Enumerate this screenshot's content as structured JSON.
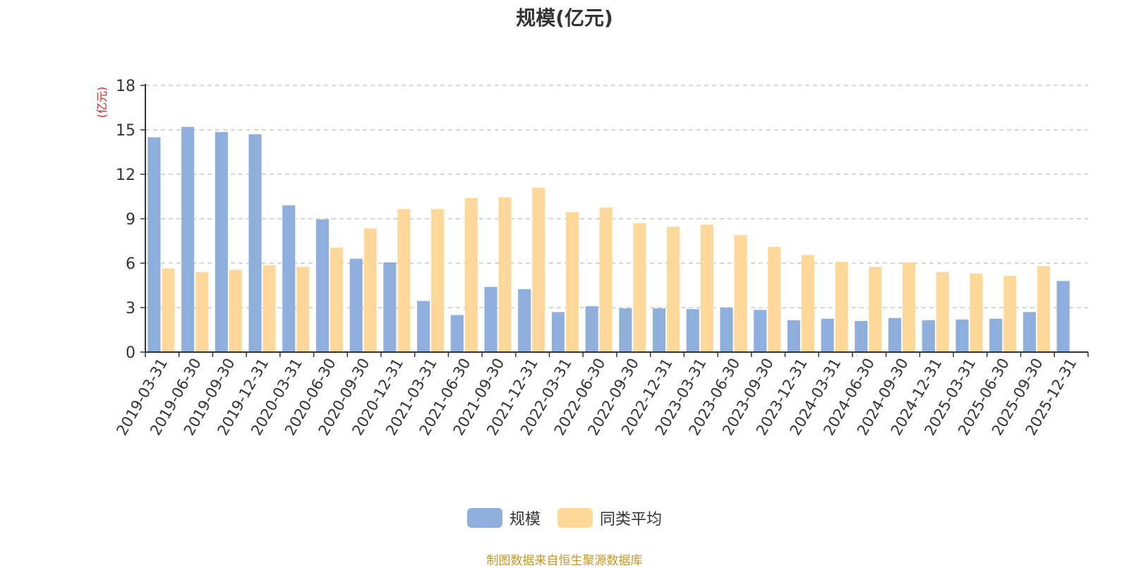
{
  "chart_data": {
    "type": "bar",
    "title": "规模(亿元)",
    "ylabel": "(亿元)",
    "xlabel": "",
    "ylim": [
      0,
      18
    ],
    "yticks": [
      0,
      3,
      6,
      9,
      12,
      15,
      18
    ],
    "grid": true,
    "legend_position": "bottom",
    "categories": [
      "2019-03-31",
      "2019-06-30",
      "2019-09-30",
      "2019-12-31",
      "2020-03-31",
      "2020-06-30",
      "2020-09-30",
      "2020-12-31",
      "2021-03-31",
      "2021-06-30",
      "2021-09-30",
      "2021-12-31",
      "2022-03-31",
      "2022-06-30",
      "2022-09-30",
      "2022-12-31",
      "2023-03-31",
      "2023-06-30",
      "2023-09-30",
      "2023-12-31",
      "2024-03-31",
      "2024-06-30",
      "2024-09-30",
      "2024-12-31",
      "2025-03-31",
      "2025-06-30",
      "2025-09-30",
      "2025-12-31"
    ],
    "series": [
      {
        "name": "规模",
        "color": "#8eaedc",
        "values": [
          14.5,
          15.2,
          14.85,
          14.7,
          9.9,
          8.95,
          6.3,
          6.05,
          3.45,
          2.5,
          4.4,
          4.25,
          2.7,
          3.1,
          2.95,
          2.95,
          2.9,
          3.0,
          2.85,
          2.15,
          2.25,
          2.1,
          2.3,
          2.15,
          2.2,
          2.25,
          2.7,
          4.8
        ]
      },
      {
        "name": "同类平均",
        "color": "#fdd89a",
        "values": [
          5.65,
          5.4,
          5.55,
          5.85,
          5.75,
          7.05,
          8.35,
          9.65,
          9.65,
          10.4,
          10.45,
          11.1,
          9.45,
          9.75,
          8.7,
          8.45,
          8.6,
          7.9,
          7.1,
          6.55,
          6.1,
          5.75,
          6.05,
          5.4,
          5.3,
          5.15,
          5.8,
          null
        ]
      }
    ]
  },
  "source_note": "制图数据来自恒生聚源数据库"
}
